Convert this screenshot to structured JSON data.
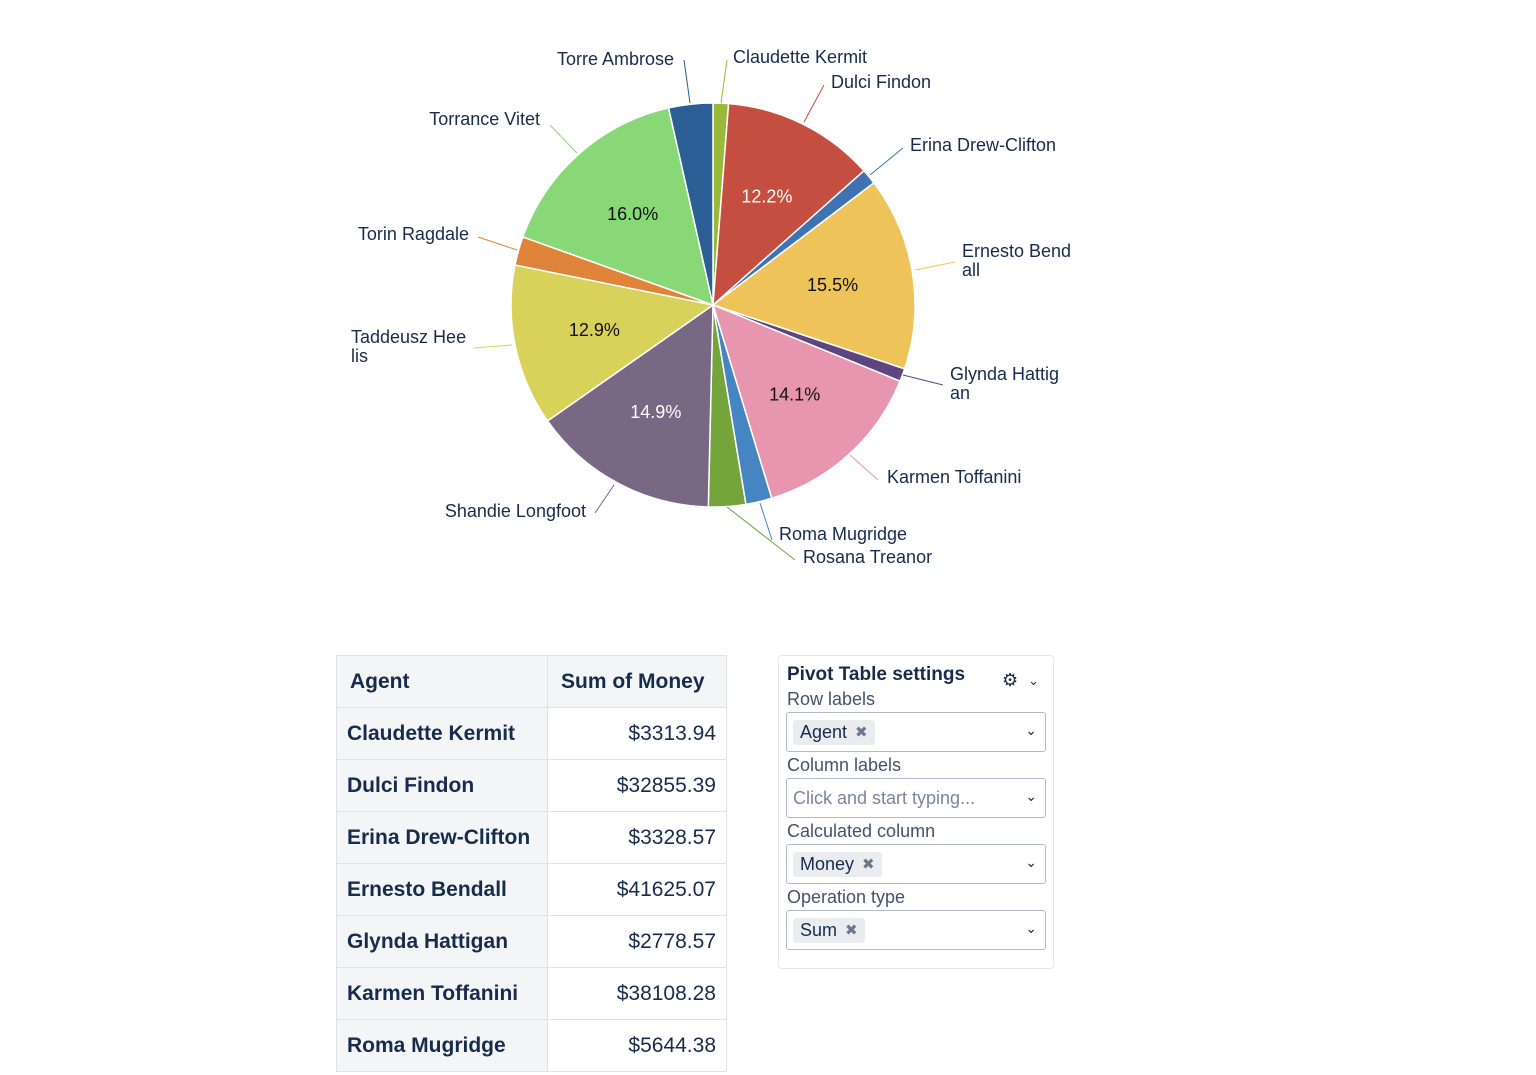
{
  "chart_data": {
    "type": "pie",
    "labels": [
      "Claudette Kermit",
      "Dulci Findon",
      "Erina Drew-Clifton",
      "Ernesto Bendall",
      "Glynda Hattigan",
      "Karmen Toffanini",
      "Roma Mugridge",
      "Rosana Treanor",
      "Shandie Longfoot",
      "Taddeusz Heelis",
      "Torin Ragdale",
      "Torrance Vitet",
      "Torre Ambrose"
    ],
    "values": [
      3313.94,
      32855.39,
      3328.57,
      41625.07,
      2778.57,
      38108.28,
      5644.38,
      8000,
      40127,
      34740,
      6200,
      43089,
      9500
    ],
    "percent_labels": [
      "",
      "12.2%",
      "",
      "15.5%",
      "",
      "14.1%",
      "",
      "",
      "14.9%",
      "12.9%",
      "",
      "16.0%",
      ""
    ],
    "colors": [
      "#9ab83a",
      "#c44e3f",
      "#3f72b0",
      "#eec45a",
      "#5c4580",
      "#e895b0",
      "#4585c2",
      "#74a43a",
      "#786884",
      "#d8d25a",
      "#df8438",
      "#88d878",
      "#2b5e94"
    ],
    "start": "top",
    "direction": "clockwise"
  },
  "table": {
    "headers": [
      "Agent",
      "Sum of Money"
    ],
    "rows": [
      [
        "Claudette Kermit",
        "$3313.94"
      ],
      [
        "Dulci Findon",
        "$32855.39"
      ],
      [
        "Erina Drew-Clifton",
        "$3328.57"
      ],
      [
        "Ernesto Bendall",
        "$41625.07"
      ],
      [
        "Glynda Hattigan",
        "$2778.57"
      ],
      [
        "Karmen Toffanini",
        "$38108.28"
      ],
      [
        "Roma Mugridge",
        "$5644.38"
      ]
    ]
  },
  "settings": {
    "title": "Pivot Table settings",
    "row_labels": {
      "label": "Row labels",
      "value": "Agent"
    },
    "column_labels": {
      "label": "Column labels",
      "placeholder": "Click and start typing..."
    },
    "calculated_column": {
      "label": "Calculated column",
      "value": "Money"
    },
    "operation_type": {
      "label": "Operation type",
      "value": "Sum"
    }
  }
}
